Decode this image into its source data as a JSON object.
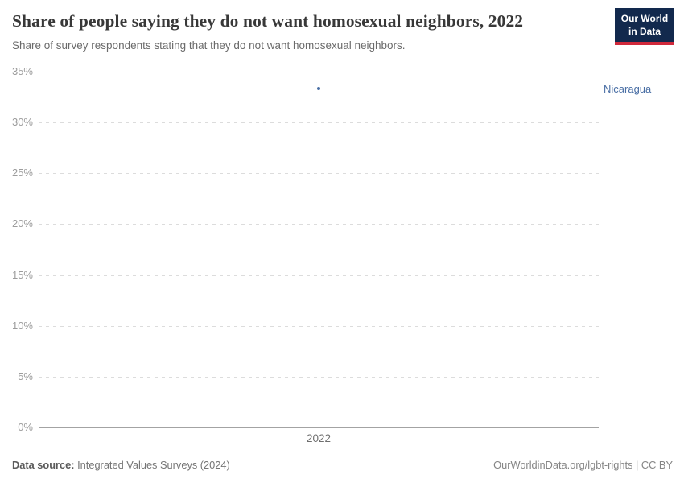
{
  "header": {
    "title": "Share of people saying they do not want homosexual neighbors, 2022",
    "subtitle": "Share of survey respondents stating that they do not want homosexual neighbors.",
    "logo": {
      "line1": "Our World",
      "line2": "in Data"
    }
  },
  "chart_data": {
    "type": "scatter",
    "title": "Share of people saying they do not want homosexual neighbors, 2022",
    "subtitle": "Share of survey respondents stating that they do not want homosexual neighbors.",
    "x_tick_labels": [
      "2022"
    ],
    "y_ticks": [
      0,
      5,
      10,
      15,
      20,
      25,
      30,
      35
    ],
    "y_tick_suffix": "%",
    "ylim": [
      0,
      35
    ],
    "grid": "horizontal-dashed",
    "series": [
      {
        "name": "Nicaragua",
        "color": "#4a6fa5",
        "points": [
          {
            "x": 2022,
            "y": 33.3
          }
        ]
      }
    ]
  },
  "footer": {
    "data_source_label": "Data source:",
    "data_source_value": "Integrated Values Surveys (2024)",
    "right_text": "OurWorldinData.org/lgbt-rights | CC BY"
  },
  "colors": {
    "accent_blue": "#4a6fa5",
    "logo_navy": "#12294d",
    "logo_red": "#d0293b",
    "title_text": "#383838",
    "subtitle_text": "#6b6b6b",
    "axis_label": "#9c9c9c",
    "gridline": "#dcdcdc",
    "axis_line": "#a3a3a3"
  }
}
